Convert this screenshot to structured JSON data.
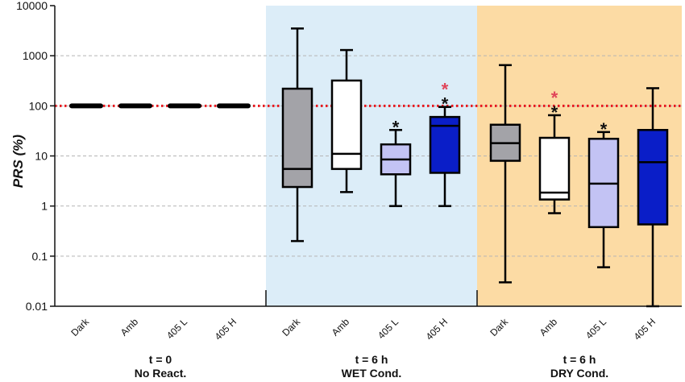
{
  "chart_data": {
    "type": "box",
    "ylabel": "PRS (%)",
    "yscale": "log",
    "ylim": [
      0.01,
      10000
    ],
    "yticks": [
      "0.01",
      "0.1",
      "1",
      "10",
      "100",
      "1000",
      "10000"
    ],
    "reference_line": {
      "y": 100,
      "color": "#e8141b",
      "style": "dotted"
    },
    "grid": "horizontal-dashed",
    "groups": [
      {
        "id": "noreact",
        "line1": "t = 0",
        "line2": "No React.",
        "background": "#ffffff"
      },
      {
        "id": "wet",
        "line1": "t = 6 h",
        "line2": "WET Cond.",
        "background": "#dcedf8"
      },
      {
        "id": "dry",
        "line1": "t = 6 h",
        "line2": "DRY Cond.",
        "background": "#fcdba4"
      }
    ],
    "boxes": [
      {
        "group": "noreact",
        "label": "Dark",
        "fill": "#000000",
        "min": 100,
        "q1": 100,
        "median": 100,
        "q3": 100,
        "max": 100,
        "stars": []
      },
      {
        "group": "noreact",
        "label": "Amb",
        "fill": "#000000",
        "min": 100,
        "q1": 100,
        "median": 100,
        "q3": 100,
        "max": 100,
        "stars": []
      },
      {
        "group": "noreact",
        "label": "405 L",
        "fill": "#000000",
        "min": 100,
        "q1": 100,
        "median": 100,
        "q3": 100,
        "max": 100,
        "stars": []
      },
      {
        "group": "noreact",
        "label": "405 H",
        "fill": "#000000",
        "min": 100,
        "q1": 100,
        "median": 100,
        "q3": 100,
        "max": 100,
        "stars": []
      },
      {
        "group": "wet",
        "label": "Dark",
        "fill": "#a3a3a8",
        "min": 0.2,
        "q1": 2.4,
        "median": 5.5,
        "q3": 220,
        "max": 3500,
        "stars": []
      },
      {
        "group": "wet",
        "label": "Amb",
        "fill": "#ffffff",
        "min": 1.9,
        "q1": 5.5,
        "median": 11,
        "q3": 320,
        "max": 1300,
        "stars": []
      },
      {
        "group": "wet",
        "label": "405 L",
        "fill": "#c3c3f4",
        "min": 1.0,
        "q1": 4.3,
        "median": 8.5,
        "q3": 17,
        "max": 33,
        "stars": [
          "black"
        ]
      },
      {
        "group": "wet",
        "label": "405 H",
        "fill": "#0a1ec8",
        "min": 1.0,
        "q1": 4.6,
        "median": 40,
        "q3": 60,
        "max": 95,
        "stars": [
          "black",
          "red"
        ]
      },
      {
        "group": "dry",
        "label": "Dark",
        "fill": "#a3a3a8",
        "min": 0.03,
        "q1": 8.0,
        "median": 18,
        "q3": 42,
        "max": 650,
        "stars": []
      },
      {
        "group": "dry",
        "label": "Amb",
        "fill": "#ffffff",
        "min": 0.72,
        "q1": 1.35,
        "median": 1.85,
        "q3": 23,
        "max": 65,
        "stars": [
          "black",
          "red"
        ]
      },
      {
        "group": "dry",
        "label": "405 L",
        "fill": "#c3c3f4",
        "min": 0.06,
        "q1": 0.38,
        "median": 2.8,
        "q3": 22,
        "max": 30,
        "stars": [
          "black"
        ]
      },
      {
        "group": "dry",
        "label": "405 H",
        "fill": "#0a1ec8",
        "min": 0.01,
        "q1": 0.43,
        "median": 7.5,
        "q3": 33,
        "max": 225,
        "stars": []
      }
    ],
    "star_symbol": "*",
    "star_colors": {
      "black": "#111111",
      "red": "#e0455a"
    }
  }
}
